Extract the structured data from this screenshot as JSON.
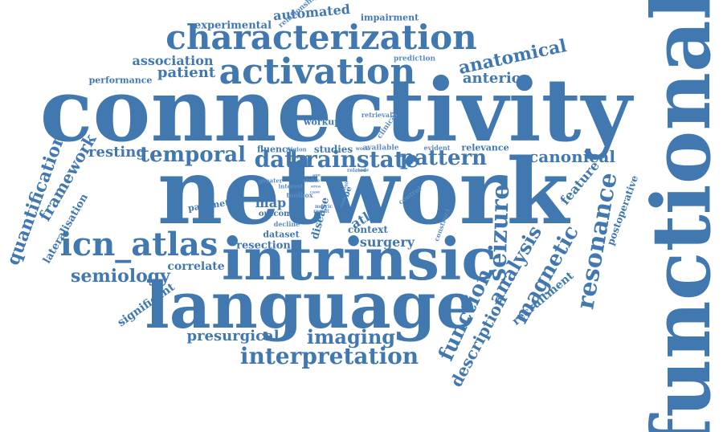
{
  "colors": {
    "primary": "#4178b0",
    "secondary": "#5b8cc0",
    "background": "#ffffff"
  },
  "words": [
    {
      "text": "connectivity",
      "tone": "primary"
    },
    {
      "text": "network",
      "tone": "primary"
    },
    {
      "text": "functional",
      "tone": "primary"
    },
    {
      "text": "language",
      "tone": "primary"
    },
    {
      "text": "intrinsic",
      "tone": "primary"
    },
    {
      "text": "characterization",
      "tone": "primary"
    },
    {
      "text": "activation",
      "tone": "primary"
    },
    {
      "text": "icn_atlas",
      "tone": "primary"
    },
    {
      "text": "resonance",
      "tone": "primary"
    },
    {
      "text": "interpretation",
      "tone": "primary"
    },
    {
      "text": "seizure",
      "tone": "primary"
    },
    {
      "text": "magnetic",
      "tone": "primary"
    },
    {
      "text": "analysis",
      "tone": "primary"
    },
    {
      "text": "function",
      "tone": "primary"
    },
    {
      "text": "temporal",
      "tone": "primary"
    },
    {
      "text": "brainstate",
      "tone": "primary"
    },
    {
      "text": "data",
      "tone": "primary"
    },
    {
      "text": "pattern",
      "tone": "primary"
    },
    {
      "text": "imaging",
      "tone": "primary"
    },
    {
      "text": "semiology",
      "tone": "primary"
    },
    {
      "text": "canonical",
      "tone": "primary"
    },
    {
      "text": "quantification",
      "tone": "primary"
    },
    {
      "text": "framework",
      "tone": "primary"
    },
    {
      "text": "anatomical",
      "tone": "primary"
    },
    {
      "text": "description",
      "tone": "primary"
    },
    {
      "text": "presurgical",
      "tone": "primary"
    },
    {
      "text": "patient",
      "tone": "primary"
    },
    {
      "text": "anterior",
      "tone": "primary"
    },
    {
      "text": "resting",
      "tone": "primary"
    },
    {
      "text": "association",
      "tone": "primary"
    },
    {
      "text": "automated",
      "tone": "primary"
    },
    {
      "text": "surgery",
      "tone": "primary"
    },
    {
      "text": "feature",
      "tone": "primary"
    },
    {
      "text": "recruitment",
      "tone": "primary"
    },
    {
      "text": "lateralisation",
      "tone": "primary"
    },
    {
      "text": "significant",
      "tone": "primary"
    },
    {
      "text": "correlate",
      "tone": "primary"
    },
    {
      "text": "resection",
      "tone": "primary"
    },
    {
      "text": "map",
      "tone": "primary"
    },
    {
      "text": "atlas",
      "tone": "primary"
    },
    {
      "text": "experimental",
      "tone": "primary"
    },
    {
      "text": "performance",
      "tone": "primary"
    },
    {
      "text": "impairment",
      "tone": "primary"
    },
    {
      "text": "relationship",
      "tone": "secondary"
    },
    {
      "text": "prediction",
      "tone": "secondary"
    },
    {
      "text": "postoperative",
      "tone": "primary"
    },
    {
      "text": "parameter",
      "tone": "primary"
    },
    {
      "text": "disease",
      "tone": "primary"
    },
    {
      "text": "context",
      "tone": "primary"
    },
    {
      "text": "dataset",
      "tone": "primary"
    },
    {
      "text": "outcome",
      "tone": "primary"
    },
    {
      "text": "workup",
      "tone": "primary"
    },
    {
      "text": "studies",
      "tone": "primary"
    },
    {
      "text": "fluency",
      "tone": "primary"
    },
    {
      "text": "relevance",
      "tone": "primary"
    },
    {
      "text": "available",
      "tone": "secondary"
    },
    {
      "text": "retrieval",
      "tone": "secondary"
    },
    {
      "text": "clinical",
      "tone": "secondary"
    },
    {
      "text": "evident",
      "tone": "secondary"
    },
    {
      "text": "region",
      "tone": "secondary"
    },
    {
      "text": "work",
      "tone": "secondary"
    },
    {
      "text": "lobe",
      "tone": "primary"
    },
    {
      "text": "construct",
      "tone": "secondary"
    },
    {
      "text": "control",
      "tone": "secondary"
    },
    {
      "text": "decline",
      "tone": "secondary"
    },
    {
      "text": "toolbox",
      "tone": "secondary"
    },
    {
      "text": "greater",
      "tone": "secondary"
    },
    {
      "text": "interest",
      "tone": "secondary"
    },
    {
      "text": "stable",
      "tone": "secondary"
    },
    {
      "text": "metric",
      "tone": "secondary"
    },
    {
      "text": "result",
      "tone": "secondary"
    },
    {
      "text": "related",
      "tone": "secondary"
    },
    {
      "text": "word",
      "tone": "secondary"
    },
    {
      "text": "area",
      "tone": "secondary"
    },
    {
      "text": "case",
      "tone": "secondary"
    },
    {
      "text": "age",
      "tone": "secondary"
    },
    {
      "text": "study",
      "tone": "secondary"
    },
    {
      "text": "high",
      "tone": "secondary"
    }
  ]
}
